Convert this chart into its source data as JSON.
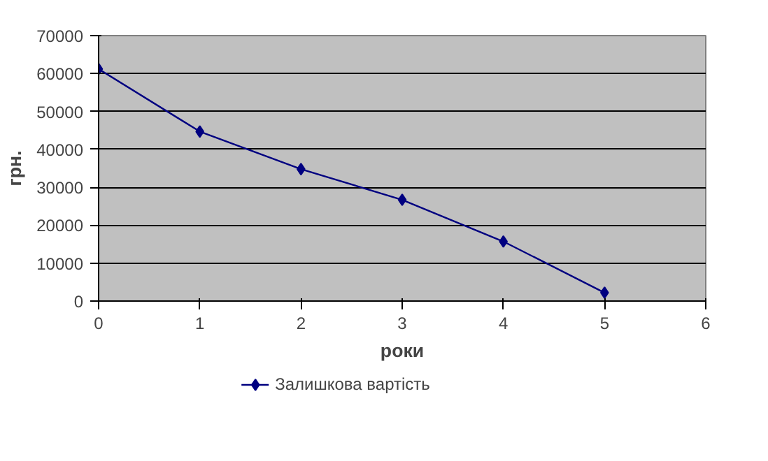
{
  "chart_data": {
    "type": "line",
    "xlabel": "роки",
    "ylabel": "грн.",
    "x": [
      0,
      1,
      2,
      3,
      4,
      5
    ],
    "series": [
      {
        "name": "Залишкова вартість",
        "color": "#000080",
        "values": [
          61200,
          44700,
          34800,
          26700,
          15700,
          2200
        ]
      }
    ],
    "xlim": [
      0,
      6
    ],
    "xticks": [
      0,
      1,
      2,
      3,
      4,
      5,
      6
    ],
    "ylim": [
      0,
      70000
    ],
    "yticks": [
      0,
      10000,
      20000,
      30000,
      40000,
      50000,
      60000,
      70000
    ],
    "grid": "y",
    "legend": "bottom",
    "marker": "diamond",
    "line_style": "solid"
  }
}
